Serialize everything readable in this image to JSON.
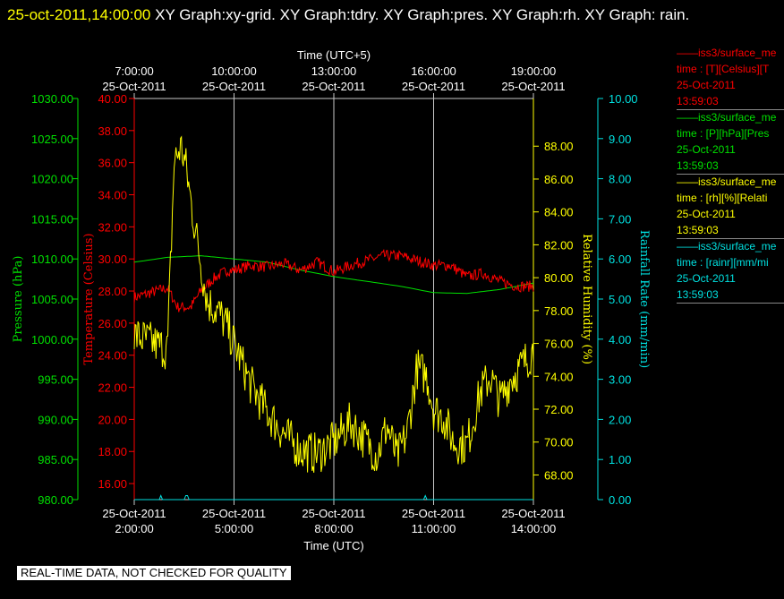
{
  "header": {
    "timestamp": "25-oct-2011,14:00:00",
    "titles": "XY Graph:xy-grid.  XY Graph:tdry.  XY Graph:pres.  XY Graph:rh.  XY Graph: rain."
  },
  "colors": {
    "pressure": "#00e000",
    "temperature": "#ff0000",
    "humidity": "#ffff00",
    "rain": "#00e0e0",
    "grid": "#c8c8c8",
    "background": "#000000"
  },
  "legend": [
    {
      "line1": "iss3/surface_me",
      "line2": "time : [T][Celsius][T",
      "line3": "25-Oct-2011",
      "line4": "13:59:03",
      "color": "#ff0000"
    },
    {
      "line1": "iss3/surface_me",
      "line2": "time : [P][hPa][Pres",
      "line3": "25-Oct-2011",
      "line4": "13:59:03",
      "color": "#00e000"
    },
    {
      "line1": "iss3/surface_me",
      "line2": "time : [rh][%][Relati",
      "line3": "25-Oct-2011",
      "line4": "13:59:03",
      "color": "#ffff00"
    },
    {
      "line1": "iss3/surface_me",
      "line2": "time : [rainr][mm/mi",
      "line3": "25-Oct-2011",
      "line4": "13:59:03",
      "color": "#00e0e0"
    }
  ],
  "footer_note": "REAL-TIME DATA, NOT CHECKED FOR QUALITY",
  "chart_data": {
    "type": "line",
    "x_axis_bottom": {
      "label": "Time (UTC)",
      "ticks": [
        {
          "date": "25-Oct-2011",
          "time": "2:00:00"
        },
        {
          "date": "25-Oct-2011",
          "time": "5:00:00"
        },
        {
          "date": "25-Oct-2011",
          "time": "8:00:00"
        },
        {
          "date": "25-Oct-2011",
          "time": "11:00:00"
        },
        {
          "date": "25-Oct-2011",
          "time": "14:00:00"
        }
      ],
      "range_hours_utc": [
        2,
        14
      ]
    },
    "x_axis_top": {
      "label": "Time (UTC+5)",
      "ticks": [
        {
          "date": "25-Oct-2011",
          "time": "7:00:00"
        },
        {
          "date": "25-Oct-2011",
          "time": "10:00:00"
        },
        {
          "date": "25-Oct-2011",
          "time": "13:00:00"
        },
        {
          "date": "25-Oct-2011",
          "time": "16:00:00"
        },
        {
          "date": "25-Oct-2011",
          "time": "19:00:00"
        }
      ]
    },
    "y_axes": {
      "pressure": {
        "label": "Pressure (hPa)",
        "range": [
          980,
          1030
        ],
        "ticks": [
          "980.00",
          "985.00",
          "990.00",
          "995.00",
          "1000.00",
          "1005.00",
          "1010.00",
          "1015.00",
          "1020.00",
          "1025.00",
          "1030.00"
        ]
      },
      "temperature": {
        "label": "Temperature (Celsius)",
        "range": [
          15,
          40
        ],
        "ticks": [
          "16.00",
          "18.00",
          "20.00",
          "22.00",
          "24.00",
          "26.00",
          "28.00",
          "30.00",
          "32.00",
          "34.00",
          "36.00",
          "38.00",
          "40.00"
        ]
      },
      "humidity": {
        "label": "Relative Humidity (%)",
        "range": [
          66.5,
          90.9
        ],
        "ticks": [
          "68.00",
          "70.00",
          "72.00",
          "74.00",
          "76.00",
          "78.00",
          "80.00",
          "82.00",
          "84.00",
          "86.00",
          "88.00"
        ]
      },
      "rain": {
        "label": "Rainfall Rate (mm/min)",
        "range": [
          0,
          10
        ],
        "ticks": [
          "0.00",
          "1.00",
          "2.00",
          "3.00",
          "4.00",
          "5.00",
          "6.00",
          "7.00",
          "8.00",
          "9.00",
          "10.00"
        ]
      }
    },
    "series": [
      {
        "name": "Pressure",
        "axis": "pressure",
        "x": [
          2,
          3,
          4,
          5,
          6,
          7,
          8,
          9,
          10,
          11,
          12,
          13,
          14
        ],
        "y": [
          1009.6,
          1010.2,
          1010.4,
          1010.0,
          1009.6,
          1008.6,
          1007.8,
          1007.2,
          1006.6,
          1005.8,
          1005.7,
          1006.2,
          1007.0
        ]
      },
      {
        "name": "Temperature",
        "axis": "temperature",
        "x": [
          2,
          2.5,
          3,
          3.3,
          3.7,
          4.0,
          4.4,
          4.8,
          5,
          5.5,
          6,
          6.5,
          7,
          7.5,
          8,
          8.5,
          9,
          9.5,
          10,
          10.5,
          11,
          11.5,
          12,
          12.5,
          13,
          13.5,
          14
        ],
        "y": [
          27.6,
          27.9,
          28.2,
          27.0,
          27.0,
          28.0,
          28.8,
          29.3,
          29.3,
          29.6,
          29.5,
          29.7,
          29.3,
          29.8,
          29.2,
          29.6,
          29.9,
          30.2,
          30.2,
          29.9,
          29.6,
          29.6,
          28.9,
          29.1,
          28.6,
          28.3,
          28.3
        ],
        "spike_amp": 0.35
      },
      {
        "name": "Relative Humidity",
        "axis": "humidity",
        "x": [
          2,
          2.6,
          3.0,
          3.2,
          3.4,
          3.55,
          3.75,
          3.95,
          4.2,
          4.5,
          4.8,
          5.1,
          5.5,
          6.0,
          6.5,
          7.0,
          7.5,
          8.0,
          8.5,
          9.0,
          9.3,
          9.6,
          9.9,
          10.2,
          10.5,
          10.8,
          11.0,
          11.3,
          11.6,
          12.0,
          12.4,
          12.7,
          13.0,
          13.3,
          13.6,
          14.0
        ],
        "y": [
          76.5,
          76.0,
          75.6,
          87.0,
          88.0,
          86.8,
          84.0,
          81.5,
          78.5,
          78.0,
          77.0,
          75.5,
          73.5,
          71.8,
          70.5,
          69.5,
          69.3,
          70.0,
          71.2,
          70.0,
          69.2,
          71.0,
          69.0,
          70.5,
          74.5,
          74.0,
          72.0,
          71.5,
          70.0,
          69.8,
          73.0,
          74.0,
          72.5,
          73.8,
          74.5,
          75.6
        ],
        "spike_amp": 1.3
      },
      {
        "name": "Rainfall Rate",
        "axis": "rain",
        "x": [
          2,
          2.75,
          2.8,
          2.85,
          3.5,
          3.55,
          3.6,
          3.65,
          10.7,
          10.75,
          10.8,
          14
        ],
        "y": [
          0,
          0,
          0.1,
          0,
          0,
          0.1,
          0.1,
          0,
          0,
          0.1,
          0,
          0
        ]
      }
    ]
  }
}
